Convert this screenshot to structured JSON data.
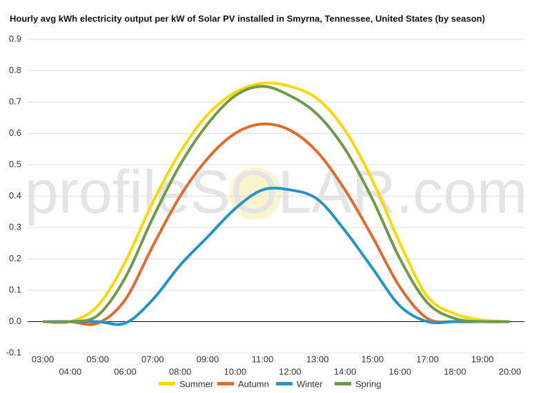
{
  "chart_data": {
    "type": "line",
    "title": "Hourly avg kWh electricity output per kW of Solar PV installed in Smyrna, Tennessee, United States (by season)",
    "watermark": "profileSOLAR.com",
    "categories": [
      "03:00",
      "04:00",
      "05:00",
      "06:00",
      "07:00",
      "08:00",
      "09:00",
      "10:00",
      "11:00",
      "12:00",
      "13:00",
      "14:00",
      "15:00",
      "16:00",
      "17:00",
      "18:00",
      "19:00",
      "20:00"
    ],
    "series": [
      {
        "name": "Summer",
        "color": "#ffd700",
        "values": [
          0,
          0,
          0.05,
          0.19,
          0.38,
          0.54,
          0.66,
          0.73,
          0.76,
          0.75,
          0.71,
          0.61,
          0.45,
          0.25,
          0.08,
          0.025,
          0.005,
          0
        ]
      },
      {
        "name": "Autumn",
        "color": "#e4692a",
        "values": [
          0,
          0,
          -0.005,
          0.07,
          0.24,
          0.4,
          0.52,
          0.6,
          0.63,
          0.61,
          0.54,
          0.42,
          0.27,
          0.11,
          0.01,
          0,
          0,
          0
        ]
      },
      {
        "name": "Winter",
        "color": "#2394c4",
        "values": [
          0,
          0,
          0,
          -0.005,
          0.07,
          0.18,
          0.27,
          0.36,
          0.42,
          0.42,
          0.39,
          0.29,
          0.17,
          0.05,
          0,
          0,
          0,
          0
        ]
      },
      {
        "name": "Spring",
        "color": "#6f9a4a",
        "values": [
          0,
          0,
          0.02,
          0.14,
          0.33,
          0.5,
          0.63,
          0.72,
          0.75,
          0.72,
          0.66,
          0.55,
          0.39,
          0.2,
          0.06,
          0.01,
          0,
          0
        ]
      }
    ],
    "ylim": [
      -0.1,
      0.9
    ],
    "yticks": [
      -0.1,
      {
        "value": 0,
        "label": "0.0"
      },
      0.1,
      0.2,
      0.3,
      0.4,
      0.5,
      0.6,
      0.7,
      0.8,
      0.9
    ],
    "grid": true,
    "legend": "bottom"
  }
}
